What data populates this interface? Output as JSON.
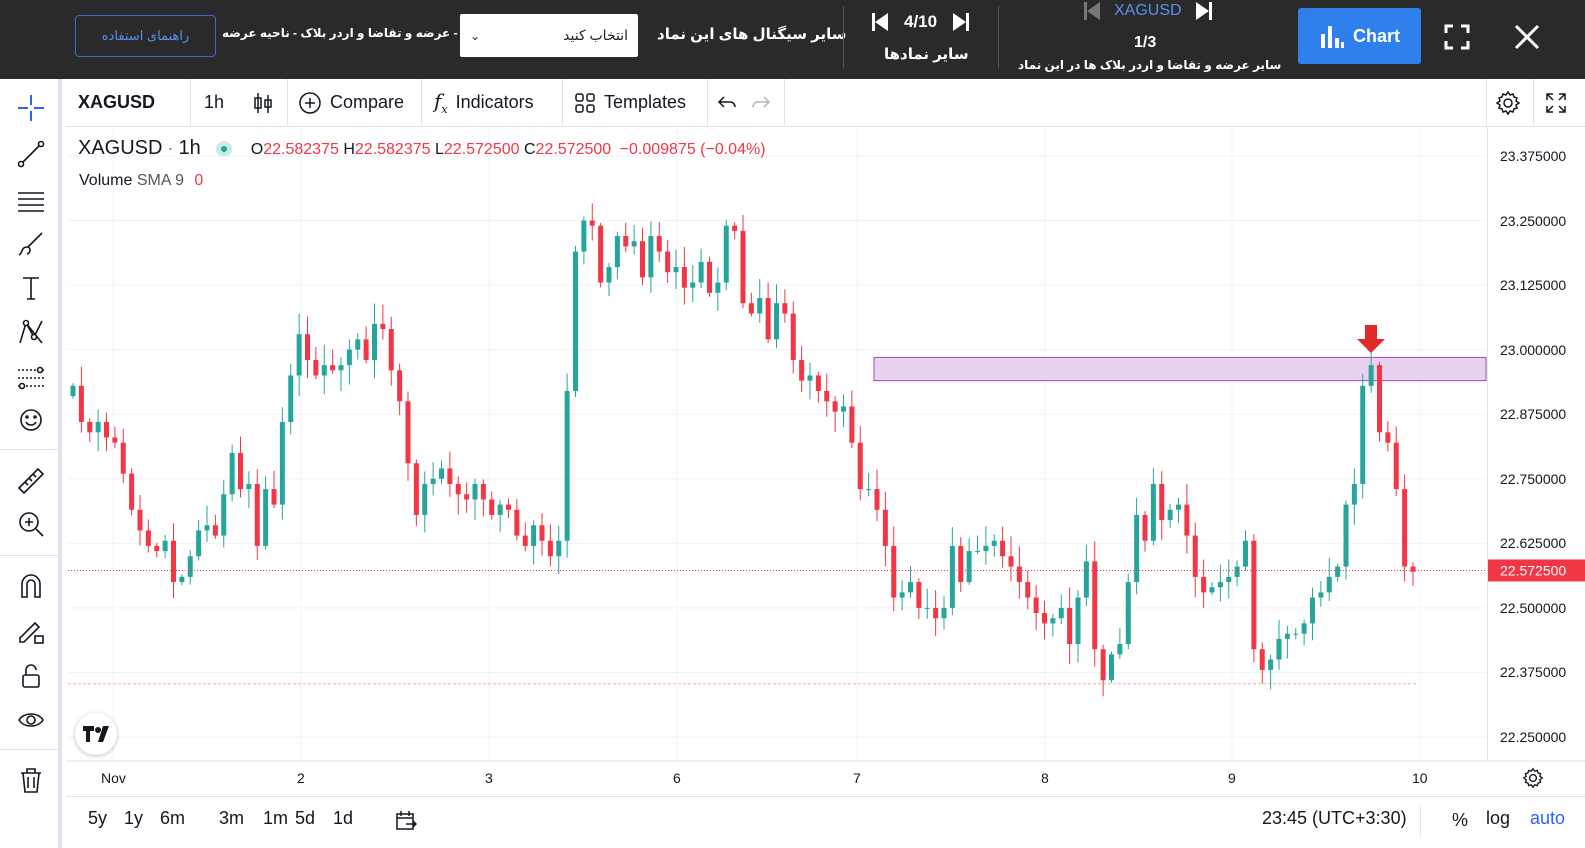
{
  "topbar": {
    "guide_label": "راهنمای استفاده",
    "ob_label": "عرضه و تقاضا و اردر بلاک - ناحیه عرضه - OB",
    "select_value": "انتخاب کنید",
    "signals_label": "سایر سیگنال های این نماد",
    "symbols_counter": "4/10",
    "symbols_label": "سایر نمادها",
    "current_symbol": "XAGUSD",
    "zones_counter": "1/3",
    "zones_label": "سایر عرضه و تقاضا و اردر بلاک ها در این نماد",
    "chart_label": "Chart"
  },
  "toolbar": {
    "symbol": "XAGUSD",
    "interval": "1h",
    "compare": "Compare",
    "indicators": "Indicators",
    "templates": "Templates"
  },
  "legend": {
    "symbol": "XAGUSD",
    "interval": "1h",
    "open_label": "O",
    "open": "22.582375",
    "high_label": "H",
    "high": "22.582375",
    "low_label": "L",
    "low": "22.572500",
    "close_label": "C",
    "close": "22.572500",
    "change": "−0.009875 (−0.04%)",
    "volume_label": "Volume",
    "volume_ind": "SMA 9",
    "volume_value": "0"
  },
  "chart_data": {
    "type": "candlestick",
    "symbol": "XAGUSD",
    "interval": "1h",
    "y_ticks": [
      "23.375000",
      "23.250000",
      "23.125000",
      "23.000000",
      "22.875000",
      "22.750000",
      "22.625000",
      "22.500000",
      "22.375000",
      "22.250000"
    ],
    "ylim": [
      22.2,
      23.42
    ],
    "x_ticks": [
      "Nov",
      "2",
      "3",
      "6",
      "7",
      "8",
      "9",
      "10"
    ],
    "last_price": "22.572500",
    "last_price_value": 22.5725,
    "support_line_value": 22.353,
    "supply_zone": {
      "low": 22.94,
      "high": 22.985
    },
    "signal_marker": "down-arrow",
    "candles": [
      22.93,
      22.86,
      22.84,
      22.86,
      22.83,
      22.82,
      22.76,
      22.69,
      22.65,
      22.62,
      22.61,
      22.63,
      22.55,
      22.56,
      22.6,
      22.65,
      22.66,
      22.64,
      22.72,
      22.8,
      22.73,
      22.74,
      22.62,
      22.73,
      22.7,
      22.86,
      22.95,
      23.03,
      22.98,
      22.95,
      22.97,
      22.96,
      22.97,
      23.0,
      23.02,
      22.98,
      23.05,
      23.04,
      22.96,
      22.9,
      22.78,
      22.68,
      22.74,
      22.75,
      22.77,
      22.74,
      22.72,
      22.71,
      22.74,
      22.71,
      22.68,
      22.7,
      22.69,
      22.64,
      22.62,
      22.66,
      22.63,
      22.6,
      22.63,
      22.92,
      23.19,
      23.25,
      23.24,
      23.13,
      23.16,
      23.22,
      23.2,
      23.21,
      23.14,
      23.22,
      23.19,
      23.15,
      23.16,
      23.12,
      23.13,
      23.17,
      23.11,
      23.13,
      23.24,
      23.23,
      23.09,
      23.07,
      23.1,
      23.02,
      23.09,
      23.07,
      22.98,
      22.94,
      22.95,
      22.92,
      22.9,
      22.88,
      22.89,
      22.82,
      22.73,
      22.73,
      22.69,
      22.62,
      22.52,
      22.53,
      22.55,
      22.5,
      22.5,
      22.48,
      22.5,
      22.62,
      22.55,
      22.61,
      22.61,
      22.62,
      22.63,
      22.6,
      22.58,
      22.55,
      22.52,
      22.49,
      22.47,
      22.48,
      22.5,
      22.43,
      22.52,
      22.59,
      22.42,
      22.36,
      22.41,
      22.43,
      22.55,
      22.68,
      22.63,
      22.74,
      22.67,
      22.69,
      22.7,
      22.64,
      22.56,
      22.53,
      22.54,
      22.55,
      22.56,
      22.58,
      22.63,
      22.42,
      22.38,
      22.4,
      22.44,
      22.45,
      22.45,
      22.47,
      22.52,
      22.53,
      22.56,
      22.58,
      22.7,
      22.74,
      22.93,
      22.97,
      22.84,
      22.82,
      22.73,
      22.58,
      22.57
    ]
  },
  "time": "23:45 (UTC+3:30)",
  "ranges": [
    "5y",
    "1y",
    "6m",
    "3m",
    "1m",
    "5d",
    "1d"
  ],
  "scale_opts": {
    "percent": "%",
    "log": "log",
    "auto": "auto"
  },
  "colors": {
    "up": "#26a69a",
    "down": "#f23645",
    "zone": "#e8d2f0",
    "accent": "#2f80ed"
  }
}
